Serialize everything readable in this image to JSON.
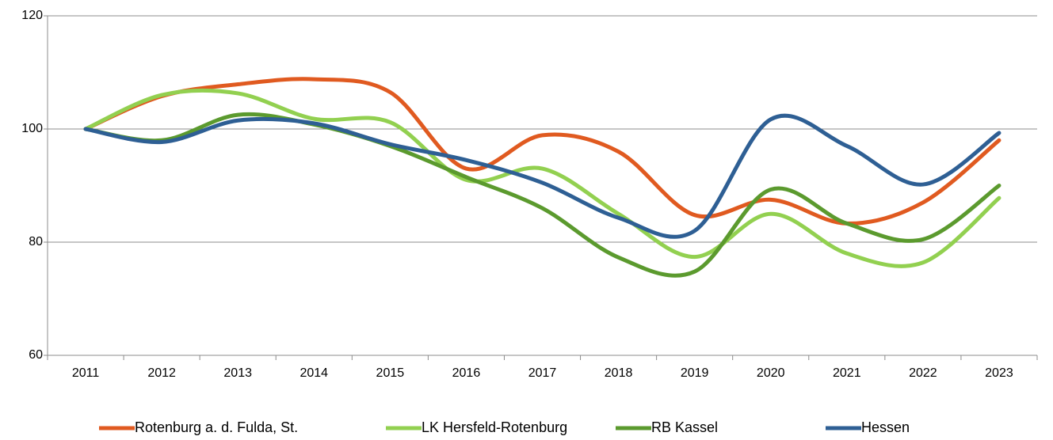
{
  "chart_data": {
    "type": "line",
    "categories": [
      "2011",
      "2012",
      "2013",
      "2014",
      "2015",
      "2016",
      "2017",
      "2018",
      "2019",
      "2020",
      "2021",
      "2022",
      "2023"
    ],
    "series": [
      {
        "name": "Rotenburg a. d. Fulda, St.",
        "color": "#e05a20",
        "values": [
          100,
          105.8,
          107.9,
          108.8,
          106.5,
          93,
          98.9,
          96,
          84.8,
          87.5,
          83.3,
          87,
          98
        ]
      },
      {
        "name": "LK Hersfeld-Rotenburg",
        "color": "#92d050",
        "values": [
          100,
          106,
          106.3,
          101.8,
          101.2,
          91,
          93,
          85,
          77.4,
          85,
          78,
          76.4,
          87.8
        ]
      },
      {
        "name": "RB Kassel",
        "color": "#5b9a2e",
        "values": [
          100,
          98,
          102.5,
          100.8,
          97,
          91.5,
          86,
          77.3,
          74.8,
          89.3,
          83.3,
          80.5,
          90
        ]
      },
      {
        "name": "Hessen",
        "color": "#2e5f94",
        "values": [
          100,
          97.7,
          101.5,
          101,
          97.3,
          94.5,
          90.5,
          84.3,
          82,
          101.7,
          97,
          90.2,
          99.3
        ]
      }
    ],
    "ylim": [
      60,
      120
    ],
    "yticks": [
      60,
      80,
      100,
      120
    ],
    "grid": true,
    "legend": "bottom"
  }
}
